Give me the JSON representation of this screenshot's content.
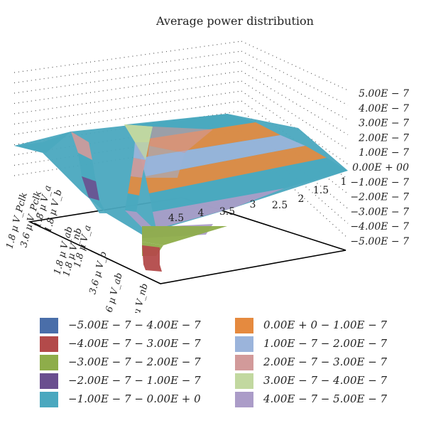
{
  "chart_data": {
    "type": "surface3d",
    "title": "Average power distribution",
    "z_ticks": [
      "5.00E − 7",
      "4.00E − 7",
      "3.00E − 7",
      "2.00E − 7",
      "1.00E − 7",
      "0.00E + 00",
      "−1.00E − 7",
      "−2.00E − 7",
      "−3.00E − 7",
      "−4.00E − 7",
      "−5.00E − 7"
    ],
    "x_ticks": [
      "1",
      "1.5",
      "2",
      "2.5",
      "3",
      "3.5",
      "4",
      "4.5"
    ],
    "y_ticks": [
      "1.8 μ V_Pclk",
      "3.6 μ V_Pclk",
      "1.8 μ V_a",
      "1.8 μ V_b",
      "1.8 μ V_ab",
      "1.8 μ V_nb",
      "1.8 μ V_a",
      "3.6 μ V_b",
      "3.6 μ V_ab",
      "3.6 μ V_nb"
    ],
    "zlim": [
      -5e-07,
      5e-07
    ],
    "legend": [
      {
        "label": "−5.00E − 7 − 4.00E − 7",
        "color": "#4a6ea9"
      },
      {
        "label": "−4.00E − 7 − 3.00E − 7",
        "color": "#b34a4a"
      },
      {
        "label": "−3.00E − 7 − 2.00E − 7",
        "color": "#8ead4a"
      },
      {
        "label": "−2.00E − 7 − 1.00E − 7",
        "color": "#6a4f8f"
      },
      {
        "label": "−1.00E − 7 − 0.00E + 0",
        "color": "#4aa8bf"
      },
      {
        "label": "0.00E + 0 − 1.00E − 7",
        "color": "#e58a3f"
      },
      {
        "label": "1.00E − 7 − 2.00E − 7",
        "color": "#9bb4db"
      },
      {
        "label": "2.00E − 7 − 3.00E − 7",
        "color": "#d29a9a"
      },
      {
        "label": "3.00E − 7 − 4.00E − 7",
        "color": "#c2d8a0"
      },
      {
        "label": "4.00E − 7 − 5.00E − 7",
        "color": "#ab9cc8"
      }
    ],
    "grid": true,
    "legend_position": "bottom"
  }
}
